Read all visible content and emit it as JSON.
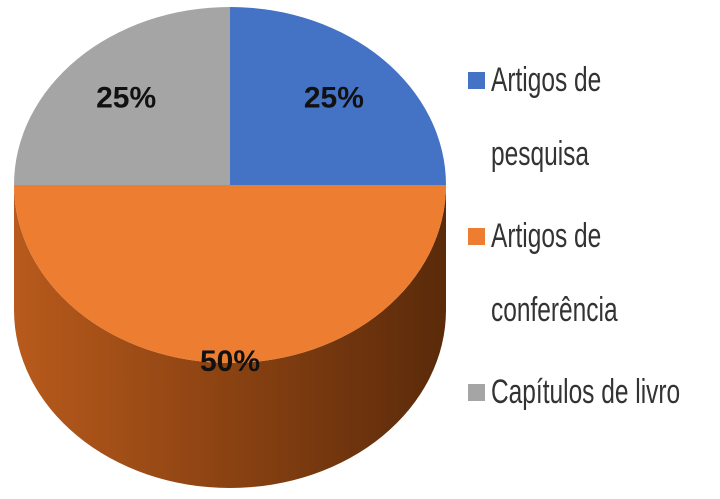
{
  "chart_data": {
    "type": "pie",
    "categories": [
      "Artigos de pesquisa",
      "Artigos de conferência",
      "Capítulos de livro"
    ],
    "values": [
      25,
      50,
      25
    ],
    "value_labels": [
      "25%",
      "50%",
      "25%"
    ],
    "colors": [
      "#4472c4",
      "#ed7d31",
      "#a5a5a5"
    ],
    "legend": "right"
  }
}
